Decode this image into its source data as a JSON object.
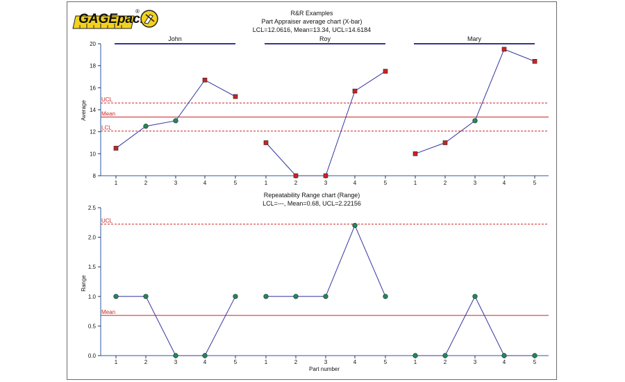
{
  "logo": {
    "text": "GAGEpack",
    "mark": "®"
  },
  "chart_data": [
    {
      "type": "line",
      "title_lines": [
        "R&R Examples",
        "Part Appraiser average chart (X-bar)",
        "LCL=12.0616, Mean=13.34, UCL=14.6184"
      ],
      "ylabel": "Average",
      "ylim": [
        8,
        20
      ],
      "yticks": [
        "20",
        "18",
        "16",
        "14",
        "12",
        "10",
        "8"
      ],
      "groups": [
        {
          "name": "John",
          "parts": [
            "1",
            "2",
            "3",
            "4",
            "5"
          ],
          "values": [
            10.5,
            12.5,
            13.0,
            16.7,
            15.2
          ],
          "markers": [
            "square",
            "circle",
            "circle",
            "square",
            "square"
          ]
        },
        {
          "name": "Roy",
          "parts": [
            "1",
            "2",
            "3",
            "4",
            "5"
          ],
          "values": [
            11.0,
            8.0,
            8.0,
            15.7,
            17.5
          ],
          "markers": [
            "square",
            "square",
            "square",
            "square",
            "square"
          ]
        },
        {
          "name": "Mary",
          "parts": [
            "1",
            "2",
            "3",
            "4",
            "5"
          ],
          "values": [
            10.0,
            11.0,
            13.0,
            19.5,
            18.4
          ],
          "markers": [
            "square",
            "square",
            "circle",
            "square",
            "square"
          ]
        }
      ],
      "control_lines": [
        {
          "label": "UCL",
          "value": 14.6184,
          "style": "dashed"
        },
        {
          "label": "Mean",
          "value": 13.34,
          "style": "solid"
        },
        {
          "label": "LCL",
          "value": 12.0616,
          "style": "dashed"
        }
      ]
    },
    {
      "type": "line",
      "title_lines": [
        "Repeatability Range chart (Range)",
        "LCL=---, Mean=0.68, UCL=2.22156"
      ],
      "ylabel": "Range",
      "xlabel": "Part number",
      "ylim": [
        0,
        2.5
      ],
      "yticks": [
        "2.5",
        "2.0",
        "1.5",
        "1.0",
        "0.5",
        "0.0"
      ],
      "groups": [
        {
          "name": "John",
          "parts": [
            "1",
            "2",
            "3",
            "4",
            "5"
          ],
          "values": [
            1.0,
            1.0,
            0.0,
            0.0,
            1.0
          ]
        },
        {
          "name": "Roy",
          "parts": [
            "1",
            "2",
            "3",
            "4",
            "5"
          ],
          "values": [
            1.0,
            1.0,
            1.0,
            2.2,
            1.0
          ]
        },
        {
          "name": "Mary",
          "parts": [
            "1",
            "2",
            "3",
            "4",
            "5"
          ],
          "values": [
            0.0,
            0.0,
            1.0,
            0.0,
            0.0
          ]
        }
      ],
      "control_lines": [
        {
          "label": "UCL",
          "value": 2.22156,
          "style": "dashed"
        },
        {
          "label": "Mean",
          "value": 0.68,
          "style": "solid"
        }
      ]
    }
  ],
  "colors": {
    "line": "#3333a0",
    "group_bar": "#33339a",
    "control": "#cc2222",
    "square_fill": "#cc2222",
    "circle_fill": "#1e8a5a",
    "axis": "#2a5aa0",
    "logo_yellow": "#f2d21e"
  }
}
